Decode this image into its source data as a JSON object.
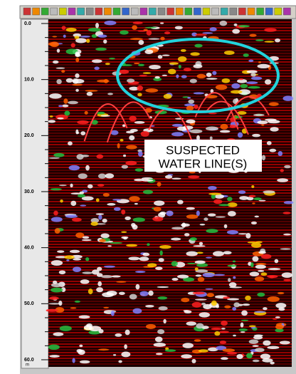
{
  "depth_axis": {
    "labels": [
      "0.0",
      "10.0",
      "20.0",
      "30.0",
      "40.0",
      "50.0",
      "60.0"
    ],
    "unit": "m"
  },
  "annotation": {
    "lines": [
      "SUSPECTED",
      "WATER LINE(S)"
    ]
  }
}
